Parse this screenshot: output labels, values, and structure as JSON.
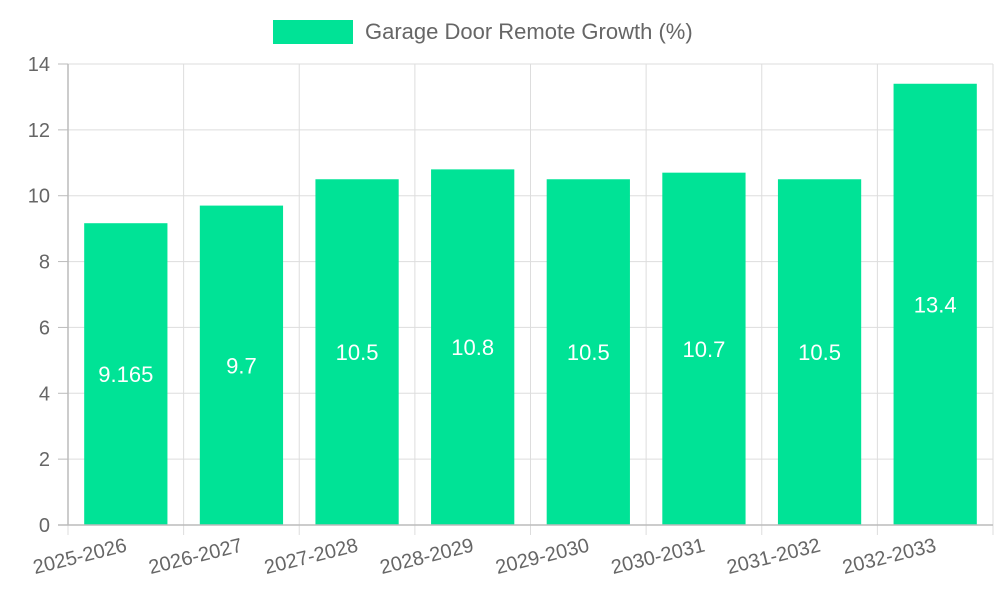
{
  "chart_data": {
    "type": "bar",
    "categories": [
      "2025-2026",
      "2026-2027",
      "2027-2028",
      "2028-2029",
      "2029-2030",
      "2030-2031",
      "2031-2032",
      "2032-2033"
    ],
    "series": [
      {
        "name": "Garage Door Remote Growth (%)",
        "values": [
          9.165,
          9.7,
          10.5,
          10.8,
          10.5,
          10.7,
          10.5,
          13.4
        ],
        "color": "#00e396"
      }
    ],
    "data_labels": [
      "9.165",
      "9.7",
      "10.5",
      "10.8",
      "10.5",
      "10.7",
      "10.5",
      "13.4"
    ],
    "y_ticks": [
      "0",
      "2",
      "4",
      "6",
      "8",
      "10",
      "12",
      "14"
    ],
    "ylim": [
      0,
      14
    ],
    "grid": true,
    "legend_position": "top-center",
    "colors": {
      "bar": "#00e396",
      "grid": "#dddddd",
      "axis": "#bbbbbb",
      "text": "#666666",
      "label": "#ffffff"
    }
  }
}
